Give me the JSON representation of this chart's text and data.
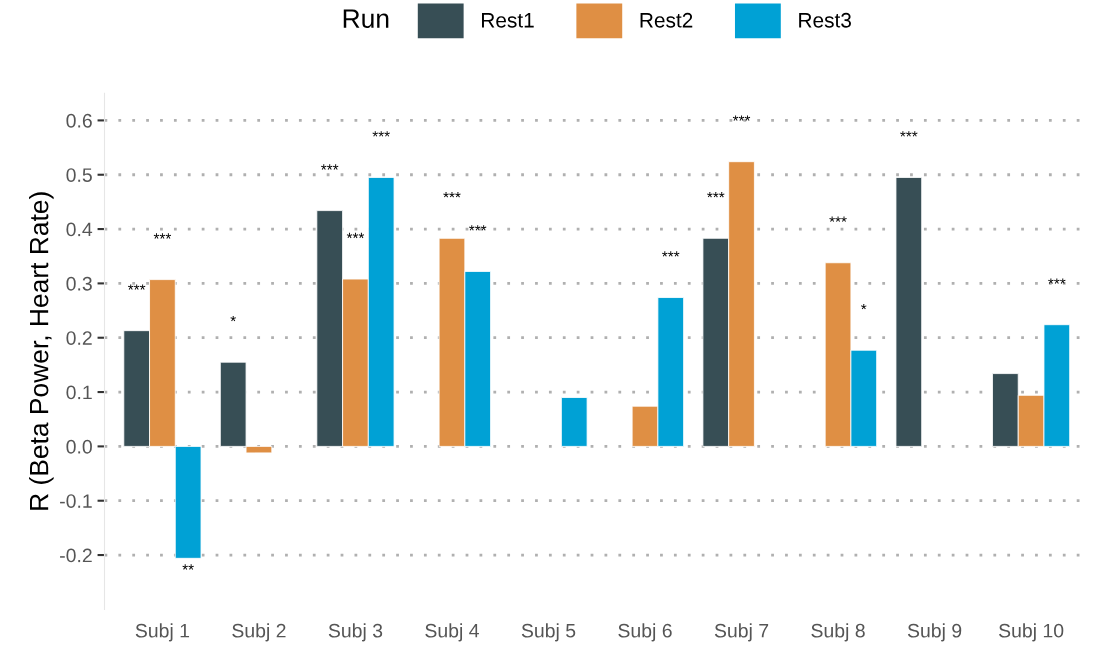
{
  "chart_data": {
    "type": "bar",
    "ylabel": "R (Beta Power, Heart Rate)",
    "legend_title": "Run",
    "legend": "top",
    "categories": [
      "Subj 1",
      "Subj 2",
      "Subj 3",
      "Subj 4",
      "Subj 5",
      "Subj 6",
      "Subj 7",
      "Subj 8",
      "Subj 9",
      "Subj 10"
    ],
    "series": [
      {
        "name": "Rest1",
        "color": "#374e55",
        "values": [
          0.213,
          0.155,
          0.434,
          null,
          null,
          null,
          0.383,
          null,
          0.495,
          0.134
        ],
        "value_labels": [
          "***",
          "*",
          "***",
          null,
          null,
          null,
          "***",
          null,
          "***",
          null
        ]
      },
      {
        "name": "Rest2",
        "color": "#df8f44",
        "values": [
          0.307,
          -0.012,
          0.308,
          0.383,
          null,
          0.074,
          0.524,
          0.338,
          null,
          0.094
        ],
        "value_labels": [
          "***",
          null,
          "***",
          "***",
          null,
          null,
          "***",
          "***",
          null,
          null
        ]
      },
      {
        "name": "Rest3",
        "color": "#00a1d5",
        "values": [
          -0.206,
          null,
          0.495,
          0.322,
          0.09,
          0.274,
          null,
          0.177,
          null,
          0.224
        ],
        "value_labels": [
          "**",
          null,
          "***",
          "***",
          null,
          "***",
          null,
          "*",
          null,
          "***"
        ]
      }
    ],
    "ylim": [
      -0.3,
      0.65
    ],
    "yticks": [
      {
        "value": -0.2,
        "label": "-0.2"
      },
      {
        "value": -0.1,
        "label": "-0.1"
      },
      {
        "value": 0,
        "label": "0.0"
      },
      0.1,
      0.2,
      0.3,
      0.4,
      0.5,
      0.6
    ],
    "grid": "y"
  }
}
